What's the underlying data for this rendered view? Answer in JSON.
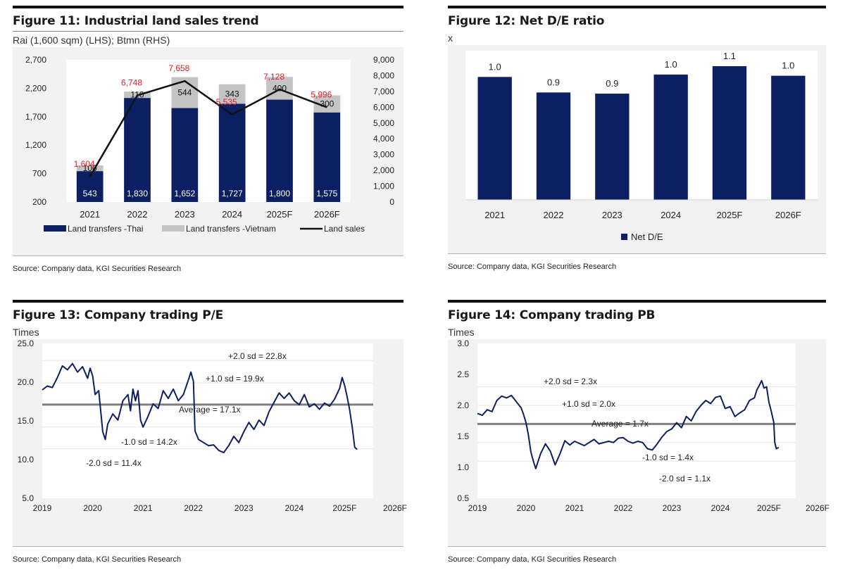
{
  "figures": {
    "fig11": {
      "title": "Figure 11: Industrial land sales trend",
      "unit": "Rai (1,600 sqm) (LHS); Btmn (RHS)",
      "source": "Source: Company data, KGI Securities Research"
    },
    "fig12": {
      "title": "Figure 12: Net D/E ratio",
      "unit": "x",
      "source": "Source: Company data, KGI Securities Research"
    },
    "fig13": {
      "title": "Figure 13: Company trading P/E",
      "unit": "Times",
      "source": "Source: Company data, KGI Securities Research"
    },
    "fig14": {
      "title": "Figure 14: Company trading PB",
      "unit": "Times",
      "source": "Source: Company data, KGI Securities Research"
    }
  },
  "colors": {
    "navy": "#0d1f63",
    "grey": "#c4c4c4",
    "red": "#e0202a",
    "line": "#111111",
    "band": "#7f7f7f"
  },
  "chart_data": [
    {
      "id": "fig11",
      "type": "bar",
      "title": "Figure 11: Industrial land sales trend",
      "categories": [
        "2021",
        "2022",
        "2023",
        "2024",
        "2025F",
        "2026F"
      ],
      "series": [
        {
          "name": "Land transfers -Thai",
          "kind": "bar",
          "stack": "a",
          "values": [
            543,
            1830,
            1652,
            1727,
            1800,
            1575
          ],
          "labels": [
            "543",
            "1,830",
            "1,652",
            "1,727",
            "1,800",
            "1,575"
          ]
        },
        {
          "name": "Land transfers -Vietnam",
          "kind": "bar",
          "stack": "a",
          "values": [
            100,
            110,
            544,
            343,
            400,
            300
          ],
          "labels": [
            "100",
            "110",
            "544",
            "343",
            "400",
            "300"
          ]
        },
        {
          "name": "Land sales",
          "kind": "line",
          "axis": "right",
          "values": [
            1604,
            6748,
            7658,
            5535,
            7128,
            5996
          ],
          "labels": [
            "1,604",
            "6,748",
            "7,658",
            "5,535",
            "7,128",
            "5,996"
          ]
        }
      ],
      "left_axis": {
        "ylim": [
          200,
          2700
        ],
        "ticks": [
          "200",
          "700",
          "1,200",
          "1,700",
          "2,200",
          "2,700"
        ]
      },
      "right_axis": {
        "ylim": [
          0,
          9000
        ],
        "ticks": [
          "0",
          "1,000",
          "2,000",
          "3,000",
          "4,000",
          "5,000",
          "6,000",
          "7,000",
          "8,000",
          "9,000"
        ]
      },
      "legend": "bottom"
    },
    {
      "id": "fig12",
      "type": "bar",
      "title": "Figure 12: Net D/E ratio",
      "categories": [
        "2021",
        "2022",
        "2023",
        "2024",
        "2025F",
        "2026F"
      ],
      "values": [
        1.03,
        0.9,
        0.89,
        1.05,
        1.12,
        1.04
      ],
      "labels": [
        "1.0",
        "0.9",
        "0.9",
        "1.0",
        "1.1",
        "1.0"
      ],
      "series_name": "Net D/E",
      "ylim": [
        0,
        1.25
      ],
      "legend": "bottom"
    },
    {
      "id": "fig13",
      "type": "line",
      "title": "Figure 13: Company trading P/E",
      "x_ticks": [
        "2019",
        "2020",
        "2021",
        "2022",
        "2023",
        "2024",
        "2025F",
        "2026F"
      ],
      "x_range": [
        2019,
        2026
      ],
      "y_ticks": [
        "5.0",
        "10.0",
        "15.0",
        "20.0",
        "25.0"
      ],
      "ylim": [
        5,
        25
      ],
      "series": {
        "name": "P/E",
        "points": [
          [
            2019.0,
            19.0
          ],
          [
            2019.1,
            19.5
          ],
          [
            2019.2,
            19.3
          ],
          [
            2019.3,
            20.6
          ],
          [
            2019.4,
            22.1
          ],
          [
            2019.5,
            21.6
          ],
          [
            2019.6,
            22.4
          ],
          [
            2019.7,
            21.3
          ],
          [
            2019.8,
            22.0
          ],
          [
            2019.9,
            20.5
          ],
          [
            2019.95,
            21.8
          ],
          [
            2020.0,
            20.8
          ],
          [
            2020.05,
            18.4
          ],
          [
            2020.12,
            18.9
          ],
          [
            2020.2,
            13.6
          ],
          [
            2020.25,
            12.6
          ],
          [
            2020.3,
            14.6
          ],
          [
            2020.4,
            15.9
          ],
          [
            2020.5,
            15.1
          ],
          [
            2020.6,
            17.6
          ],
          [
            2020.7,
            18.4
          ],
          [
            2020.75,
            16.3
          ],
          [
            2020.8,
            19.1
          ],
          [
            2020.85,
            17.6
          ],
          [
            2020.9,
            18.9
          ],
          [
            2020.95,
            15.1
          ],
          [
            2021.0,
            14.2
          ],
          [
            2021.1,
            15.6
          ],
          [
            2021.2,
            17.2
          ],
          [
            2021.3,
            16.6
          ],
          [
            2021.4,
            18.9
          ],
          [
            2021.5,
            17.9
          ],
          [
            2021.6,
            19.1
          ],
          [
            2021.7,
            17.6
          ],
          [
            2021.8,
            18.4
          ],
          [
            2021.9,
            20.3
          ],
          [
            2021.95,
            21.3
          ],
          [
            2022.0,
            20.1
          ],
          [
            2022.03,
            13.7
          ],
          [
            2022.1,
            12.6
          ],
          [
            2022.2,
            12.2
          ],
          [
            2022.3,
            11.8
          ],
          [
            2022.4,
            11.9
          ],
          [
            2022.5,
            11.2
          ],
          [
            2022.6,
            10.9
          ],
          [
            2022.7,
            11.8
          ],
          [
            2022.8,
            13.0
          ],
          [
            2022.9,
            12.2
          ],
          [
            2023.0,
            13.6
          ],
          [
            2023.1,
            14.8
          ],
          [
            2023.2,
            13.9
          ],
          [
            2023.3,
            15.1
          ],
          [
            2023.4,
            14.4
          ],
          [
            2023.5,
            16.2
          ],
          [
            2023.6,
            17.4
          ],
          [
            2023.7,
            18.6
          ],
          [
            2023.8,
            17.9
          ],
          [
            2023.9,
            18.6
          ],
          [
            2024.0,
            17.6
          ],
          [
            2024.1,
            17.1
          ],
          [
            2024.2,
            18.4
          ],
          [
            2024.3,
            16.8
          ],
          [
            2024.4,
            17.2
          ],
          [
            2024.5,
            16.5
          ],
          [
            2024.6,
            17.3
          ],
          [
            2024.7,
            16.9
          ],
          [
            2024.8,
            17.8
          ],
          [
            2024.9,
            19.2
          ],
          [
            2024.95,
            20.6
          ],
          [
            2025.0,
            19.6
          ],
          [
            2025.05,
            18.1
          ],
          [
            2025.1,
            16.4
          ],
          [
            2025.15,
            14.2
          ],
          [
            2025.2,
            11.6
          ],
          [
            2025.25,
            11.3
          ]
        ]
      },
      "bands": [
        {
          "label": "+2.0 sd = 22.8x",
          "value": 22.8,
          "main": false
        },
        {
          "label": "+1.0 sd = 19.9x",
          "value": 19.9,
          "main": false
        },
        {
          "label": "Average = 17.1x",
          "value": 17.1,
          "main": true
        },
        {
          "label": "-1.0 sd = 14.2x",
          "value": 14.2,
          "main": false
        },
        {
          "label": "-2.0 sd = 11.4x",
          "value": 11.4,
          "main": false
        }
      ]
    },
    {
      "id": "fig14",
      "type": "line",
      "title": "Figure 14: Company trading PB",
      "x_ticks": [
        "2019",
        "2020",
        "2021",
        "2022",
        "2023",
        "2024",
        "2025F",
        "2026F"
      ],
      "x_range": [
        2019,
        2026
      ],
      "y_ticks": [
        "0.5",
        "1.0",
        "1.5",
        "2.0",
        "2.5",
        "3.0"
      ],
      "ylim": [
        0.5,
        3.0
      ],
      "series": {
        "name": "PB",
        "points": [
          [
            2019.0,
            1.87
          ],
          [
            2019.1,
            1.84
          ],
          [
            2019.2,
            1.93
          ],
          [
            2019.3,
            1.9
          ],
          [
            2019.4,
            2.08
          ],
          [
            2019.5,
            2.15
          ],
          [
            2019.6,
            2.12
          ],
          [
            2019.7,
            2.16
          ],
          [
            2019.8,
            2.06
          ],
          [
            2019.9,
            1.96
          ],
          [
            2019.95,
            1.85
          ],
          [
            2020.0,
            1.72
          ],
          [
            2020.05,
            1.52
          ],
          [
            2020.1,
            1.25
          ],
          [
            2020.15,
            1.1
          ],
          [
            2020.2,
            0.98
          ],
          [
            2020.3,
            1.22
          ],
          [
            2020.4,
            1.38
          ],
          [
            2020.5,
            1.26
          ],
          [
            2020.6,
            1.04
          ],
          [
            2020.7,
            1.22
          ],
          [
            2020.8,
            1.43
          ],
          [
            2020.9,
            1.36
          ],
          [
            2021.0,
            1.42
          ],
          [
            2021.2,
            1.35
          ],
          [
            2021.4,
            1.45
          ],
          [
            2021.5,
            1.38
          ],
          [
            2021.7,
            1.42
          ],
          [
            2021.8,
            1.4
          ],
          [
            2021.9,
            1.47
          ],
          [
            2022.0,
            1.48
          ],
          [
            2022.1,
            1.42
          ],
          [
            2022.2,
            1.39
          ],
          [
            2022.3,
            1.42
          ],
          [
            2022.4,
            1.4
          ],
          [
            2022.5,
            1.3
          ],
          [
            2022.6,
            1.28
          ],
          [
            2022.7,
            1.38
          ],
          [
            2022.8,
            1.49
          ],
          [
            2022.9,
            1.58
          ],
          [
            2023.0,
            1.62
          ],
          [
            2023.1,
            1.72
          ],
          [
            2023.2,
            1.64
          ],
          [
            2023.3,
            1.82
          ],
          [
            2023.4,
            1.75
          ],
          [
            2023.5,
            1.9
          ],
          [
            2023.6,
            2.0
          ],
          [
            2023.7,
            2.08
          ],
          [
            2023.8,
            2.03
          ],
          [
            2023.9,
            2.13
          ],
          [
            2024.0,
            2.15
          ],
          [
            2024.1,
            1.95
          ],
          [
            2024.2,
            1.98
          ],
          [
            2024.3,
            1.82
          ],
          [
            2024.4,
            1.88
          ],
          [
            2024.5,
            1.93
          ],
          [
            2024.6,
            2.08
          ],
          [
            2024.7,
            2.12
          ],
          [
            2024.75,
            2.25
          ],
          [
            2024.8,
            2.32
          ],
          [
            2024.85,
            2.4
          ],
          [
            2024.9,
            2.28
          ],
          [
            2024.95,
            2.3
          ],
          [
            2025.0,
            2.05
          ],
          [
            2025.05,
            1.9
          ],
          [
            2025.1,
            1.72
          ],
          [
            2025.12,
            1.4
          ],
          [
            2025.15,
            1.3
          ],
          [
            2025.2,
            1.32
          ]
        ]
      },
      "bands": [
        {
          "label": "+2.0 sd = 2.3x",
          "value": 2.3,
          "main": false
        },
        {
          "label": "+1.0 sd = 2.0x",
          "value": 2.0,
          "main": false
        },
        {
          "label": "Average = 1.7x",
          "value": 1.7,
          "main": true
        },
        {
          "label": "-1.0 sd = 1.4x",
          "value": 1.4,
          "main": false
        },
        {
          "label": "-2.0 sd = 1.1x",
          "value": 1.1,
          "main": false
        }
      ]
    }
  ]
}
